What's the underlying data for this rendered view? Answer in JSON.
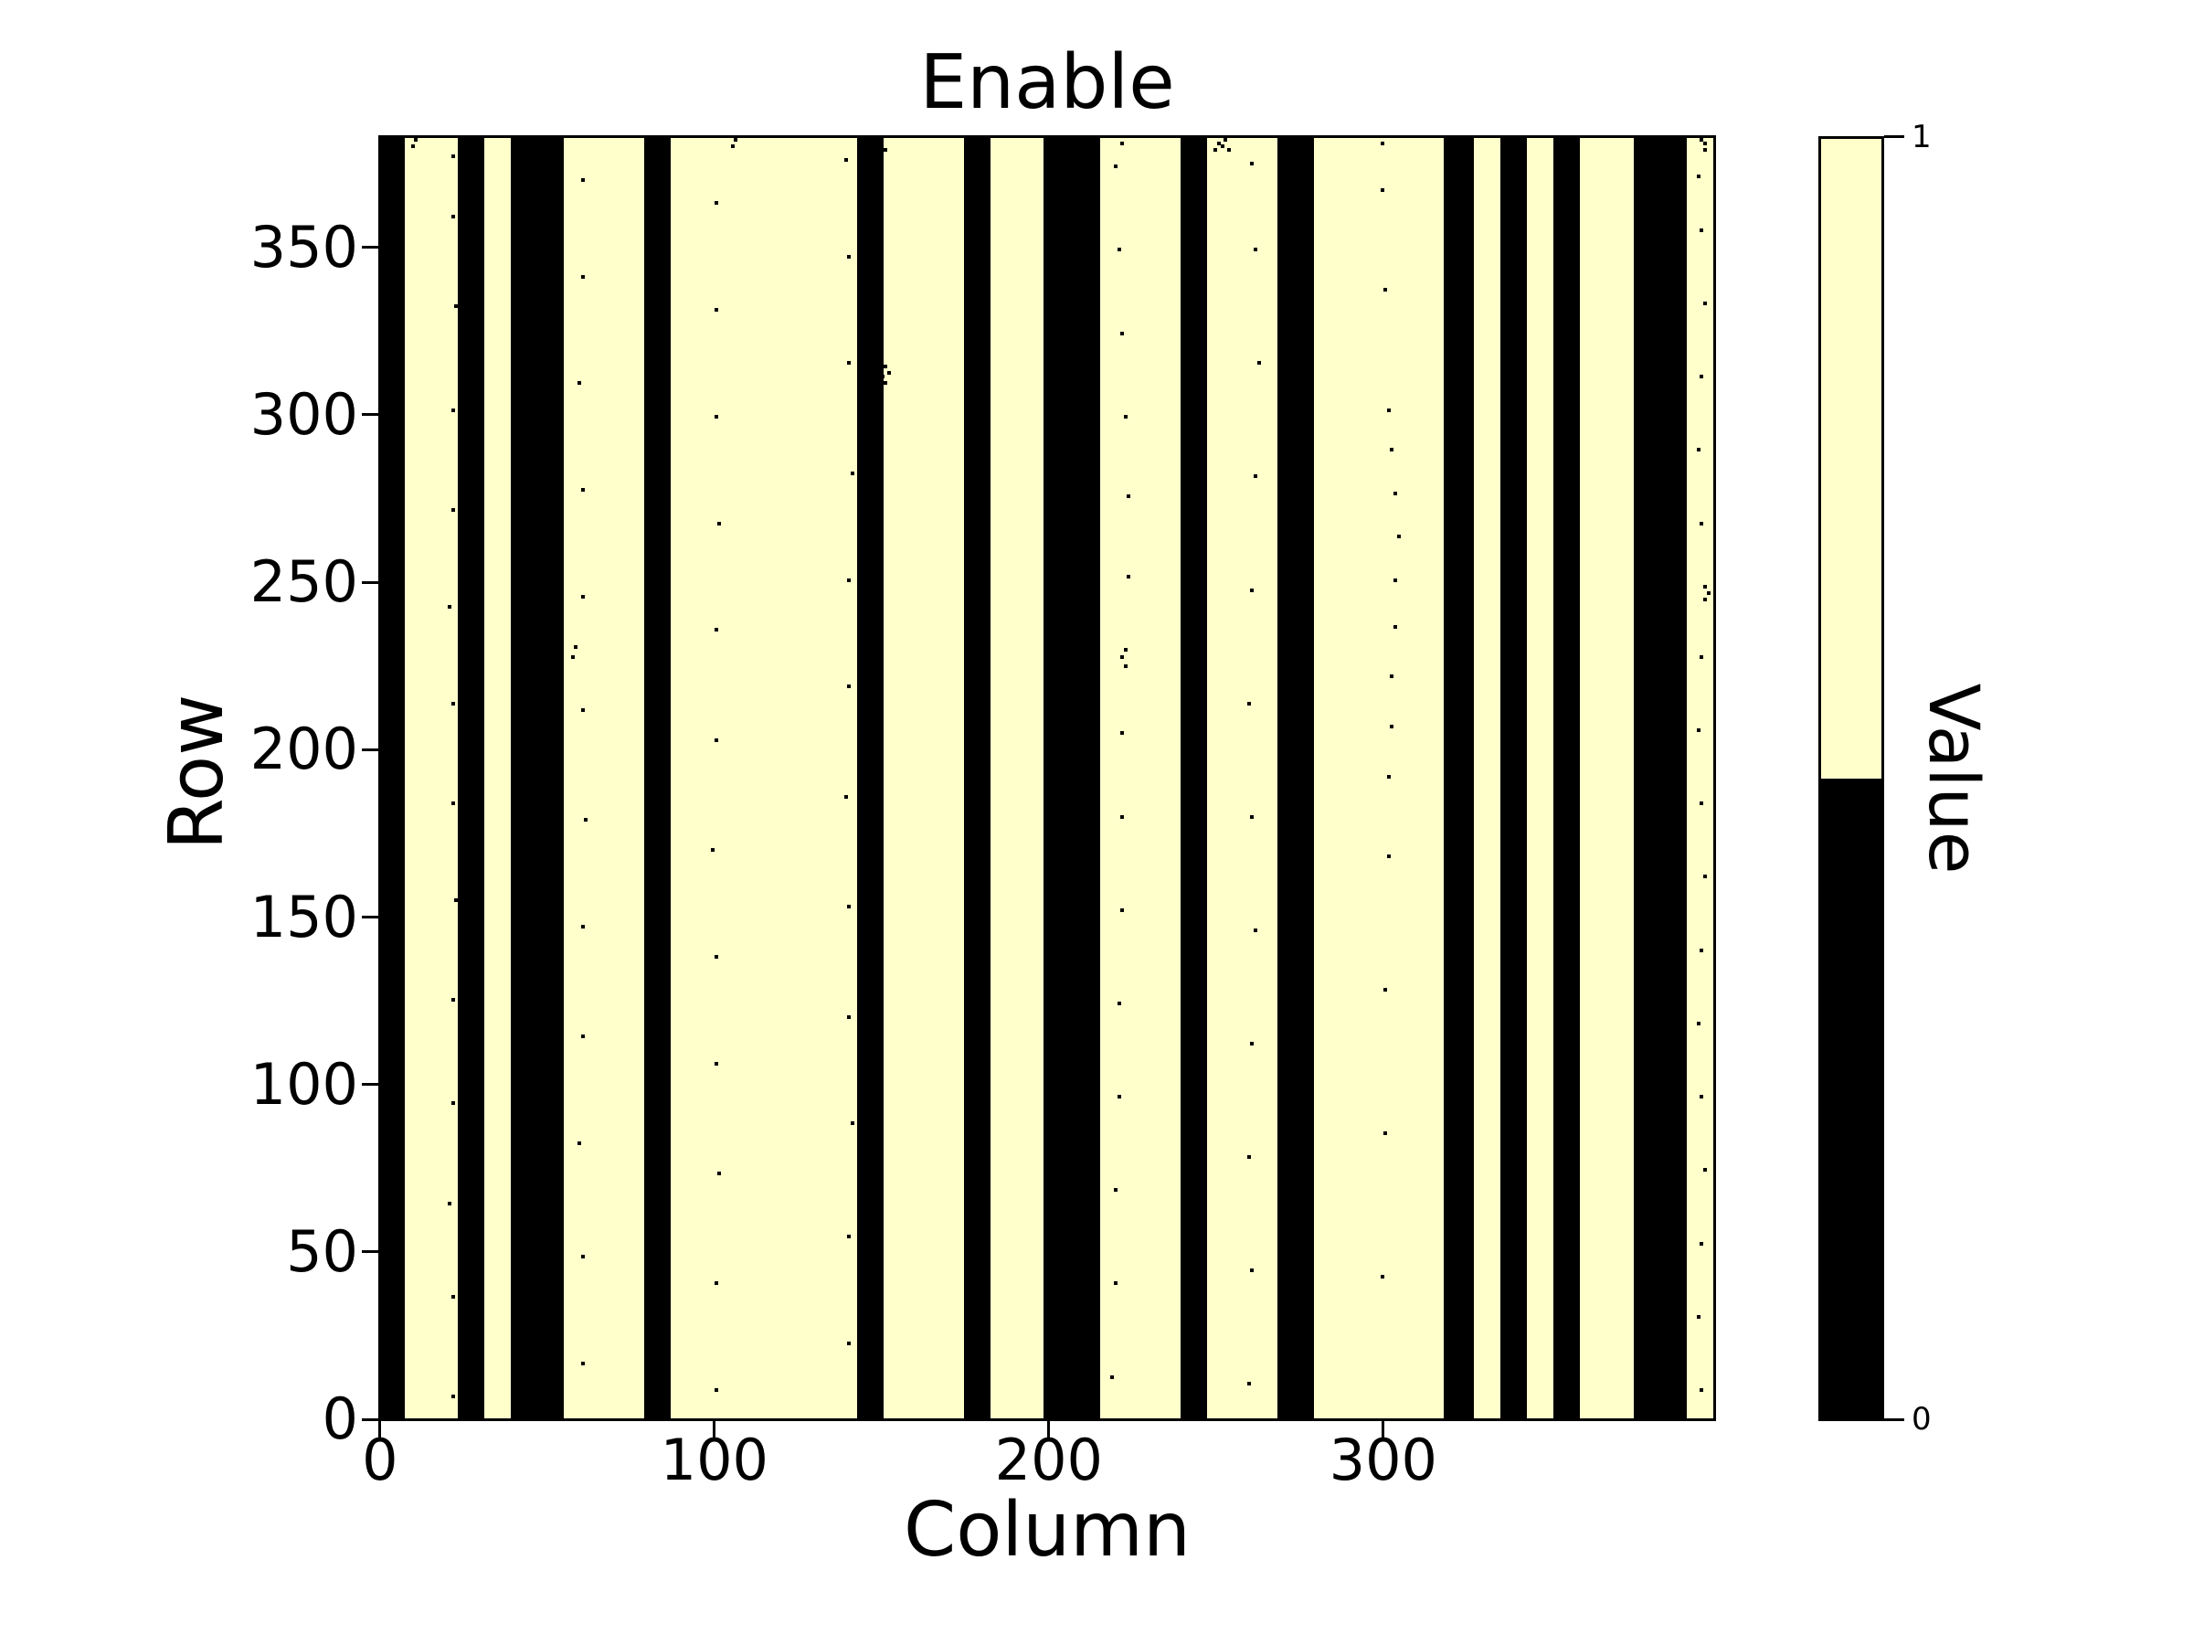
{
  "title": "Enable",
  "x_axis": {
    "label": "Column",
    "ticks": [
      "0",
      "100",
      "200",
      "300"
    ],
    "tick_values": [
      0,
      100,
      200,
      300
    ]
  },
  "y_axis": {
    "label": "Row",
    "ticks": [
      "0",
      "50",
      "100",
      "150",
      "200",
      "250",
      "300",
      "350"
    ],
    "tick_values": [
      0,
      50,
      100,
      150,
      200,
      250,
      300,
      350
    ]
  },
  "colorbar": {
    "label": "Value",
    "tick_top": "1",
    "tick_bottom": "0"
  },
  "colors": {
    "value_1": "#ffffcc",
    "value_0": "#000000",
    "background": "#ffffff"
  },
  "chart_data": {
    "type": "heatmap",
    "title": "Enable",
    "xlabel": "Column",
    "ylabel": "Row",
    "colorbar_label": "Value",
    "legend_position": "right-colorbar",
    "grid": false,
    "n_columns": 400,
    "n_rows": 384,
    "xlim": [
      0,
      400
    ],
    "ylim": [
      0,
      384
    ],
    "value_encoding": {
      "1": "#ffffcc",
      "0": "#000000"
    },
    "black_column_ranges": [
      [
        0,
        7
      ],
      [
        23,
        31
      ],
      [
        39,
        55
      ],
      [
        79,
        87
      ],
      [
        143,
        151
      ],
      [
        175,
        183
      ],
      [
        199,
        216
      ],
      [
        240,
        248
      ],
      [
        269,
        280
      ],
      [
        319,
        328
      ],
      [
        336,
        344
      ],
      [
        352,
        360
      ],
      [
        376,
        392
      ]
    ],
    "noise_dots": [
      [
        21,
        6
      ],
      [
        21,
        36
      ],
      [
        20,
        64
      ],
      [
        21,
        94
      ],
      [
        21,
        125
      ],
      [
        22,
        155
      ],
      [
        21,
        184
      ],
      [
        21,
        214
      ],
      [
        20,
        243
      ],
      [
        21,
        272
      ],
      [
        21,
        302
      ],
      [
        22,
        333
      ],
      [
        21,
        360
      ],
      [
        21,
        378
      ],
      [
        60,
        16
      ],
      [
        60,
        48
      ],
      [
        59,
        82
      ],
      [
        60,
        114
      ],
      [
        60,
        147
      ],
      [
        61,
        179
      ],
      [
        60,
        212
      ],
      [
        57,
        228
      ],
      [
        58,
        231
      ],
      [
        60,
        246
      ],
      [
        60,
        278
      ],
      [
        59,
        310
      ],
      [
        60,
        342
      ],
      [
        60,
        371
      ],
      [
        100,
        8
      ],
      [
        100,
        40
      ],
      [
        101,
        73
      ],
      [
        100,
        106
      ],
      [
        100,
        138
      ],
      [
        99,
        170
      ],
      [
        100,
        203
      ],
      [
        100,
        236
      ],
      [
        101,
        268
      ],
      [
        100,
        300
      ],
      [
        100,
        332
      ],
      [
        100,
        364
      ],
      [
        140,
        22
      ],
      [
        140,
        54
      ],
      [
        141,
        88
      ],
      [
        140,
        120
      ],
      [
        140,
        153
      ],
      [
        139,
        186
      ],
      [
        140,
        219
      ],
      [
        140,
        251
      ],
      [
        141,
        283
      ],
      [
        140,
        316
      ],
      [
        140,
        348
      ],
      [
        139,
        377
      ],
      [
        150,
        312
      ],
      [
        151,
        315
      ],
      [
        152,
        313
      ],
      [
        151,
        310
      ],
      [
        219,
        12
      ],
      [
        220,
        40
      ],
      [
        220,
        68
      ],
      [
        221,
        96
      ],
      [
        221,
        124
      ],
      [
        222,
        152
      ],
      [
        222,
        180
      ],
      [
        222,
        205
      ],
      [
        223,
        225
      ],
      [
        222,
        228
      ],
      [
        223,
        230
      ],
      [
        224,
        252
      ],
      [
        224,
        276
      ],
      [
        223,
        300
      ],
      [
        222,
        325
      ],
      [
        221,
        350
      ],
      [
        220,
        375
      ],
      [
        222,
        382
      ],
      [
        260,
        10
      ],
      [
        261,
        44
      ],
      [
        260,
        78
      ],
      [
        261,
        112
      ],
      [
        262,
        146
      ],
      [
        261,
        180
      ],
      [
        260,
        214
      ],
      [
        261,
        248
      ],
      [
        262,
        282
      ],
      [
        263,
        316
      ],
      [
        262,
        350
      ],
      [
        261,
        376
      ],
      [
        300,
        42
      ],
      [
        301,
        85
      ],
      [
        301,
        128
      ],
      [
        302,
        168
      ],
      [
        302,
        192
      ],
      [
        303,
        207
      ],
      [
        303,
        222
      ],
      [
        304,
        237
      ],
      [
        304,
        251
      ],
      [
        305,
        264
      ],
      [
        304,
        277
      ],
      [
        303,
        290
      ],
      [
        302,
        302
      ],
      [
        301,
        338
      ],
      [
        300,
        368
      ],
      [
        396,
        8
      ],
      [
        395,
        30
      ],
      [
        396,
        52
      ],
      [
        397,
        74
      ],
      [
        396,
        96
      ],
      [
        395,
        118
      ],
      [
        396,
        140
      ],
      [
        397,
        162
      ],
      [
        396,
        184
      ],
      [
        395,
        206
      ],
      [
        396,
        228
      ],
      [
        397,
        245
      ],
      [
        398,
        247
      ],
      [
        397,
        249
      ],
      [
        396,
        268
      ],
      [
        395,
        290
      ],
      [
        396,
        312
      ],
      [
        397,
        334
      ],
      [
        396,
        356
      ],
      [
        395,
        372
      ],
      [
        397,
        380
      ],
      [
        9,
        381
      ],
      [
        10,
        383
      ],
      [
        105,
        381
      ],
      [
        106,
        383
      ],
      [
        151,
        380
      ],
      [
        205,
        381
      ],
      [
        206,
        383
      ],
      [
        250,
        380
      ],
      [
        251,
        382
      ],
      [
        252,
        381
      ],
      [
        253,
        383
      ],
      [
        254,
        380
      ],
      [
        300,
        382
      ],
      [
        396,
        383
      ],
      [
        397,
        382
      ]
    ]
  }
}
